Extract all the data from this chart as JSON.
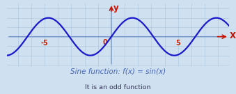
{
  "background_color": "#cfe0f0",
  "plot_bg_color": "#cfe0f0",
  "curve_color": "#1a1acc",
  "axis_color": "#7799cc",
  "arrow_color": "#cc1100",
  "grid_color": "#aac4dc",
  "tick_label_color": "#cc2200",
  "label_x": "X",
  "label_y": "y",
  "label_color": "#cc1100",
  "title_text": "Sine function: f(x) = sin(x)",
  "title_color": "#4466bb",
  "subtitle_text": "It is an odd function",
  "subtitle_color": "#333355",
  "xlim": [
    -7.8,
    8.8
  ],
  "ylim": [
    -1.55,
    1.75
  ],
  "xticks": [
    -5,
    5
  ],
  "x_tick_labels": [
    "-5",
    "5"
  ],
  "origin_label": "0",
  "curve_lw": 1.6,
  "axis_lw": 1.0,
  "title_fontsize": 7.5,
  "subtitle_fontsize": 6.8,
  "tick_fontsize": 7.0
}
